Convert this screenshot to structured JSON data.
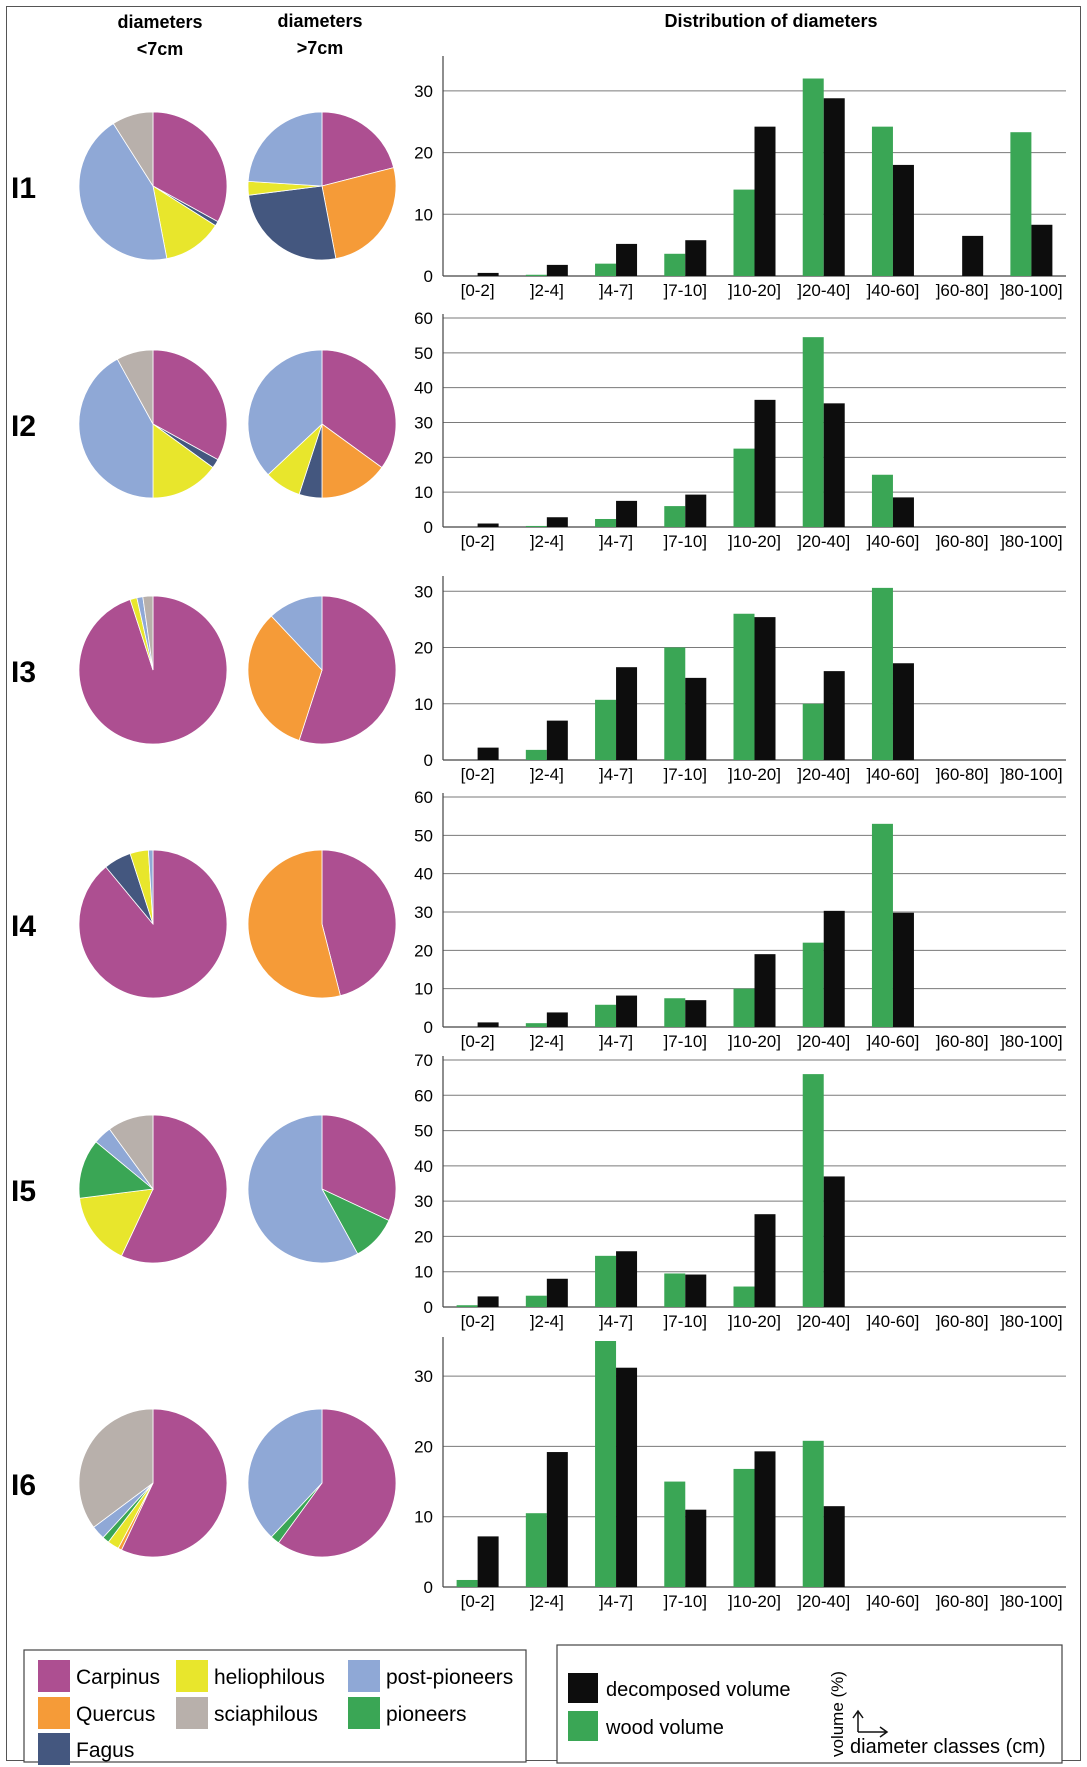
{
  "header": {
    "col1_line1": "diameters",
    "col1_line2": "<7cm",
    "col2_line1": "diameters",
    "col2_line2": ">7cm",
    "col3": "Distribution of diameters"
  },
  "colors": {
    "Carpinus": "#ad4f91",
    "Quercus": "#f59b38",
    "Fagus": "#44577f",
    "heliophilous": "#e8e62c",
    "sciaphilous": "#b8b0ab",
    "post-pioneers": "#8fa8d6",
    "pioneers": "#3aa655",
    "decomposed": "#0d0d0d",
    "wood": "#3aa655"
  },
  "legend": {
    "species": [
      {
        "key": "Carpinus",
        "label": "Carpinus"
      },
      {
        "key": "Quercus",
        "label": "Quercus"
      },
      {
        "key": "Fagus",
        "label": "Fagus"
      },
      {
        "key": "heliophilous",
        "label": "heliophilous"
      },
      {
        "key": "sciaphilous",
        "label": "sciaphilous"
      },
      {
        "key": "post-pioneers",
        "label": "post-pioneers"
      },
      {
        "key": "pioneers",
        "label": "pioneers"
      }
    ],
    "volume": [
      {
        "key": "decomposed",
        "label": "decomposed volume"
      },
      {
        "key": "wood",
        "label": "wood volume"
      }
    ],
    "axis_y": "volume (%)",
    "axis_x": "diameter classes (cm)"
  },
  "chart_data": {
    "type": "bar",
    "categories": [
      "[0-2]",
      "]2-4]",
      "]4-7]",
      "]7-10]",
      "]10-20]",
      "]20-40]",
      "]40-60]",
      "]60-80]",
      "]80-100]"
    ],
    "plots": [
      {
        "row": "I1",
        "yticks": [
          0,
          10,
          20,
          30
        ],
        "ymax": 35,
        "pie_small": [
          [
            "Carpinus",
            33
          ],
          [
            "Fagus",
            1
          ],
          [
            "heliophilous",
            13
          ],
          [
            "post-pioneers",
            44
          ],
          [
            "sciaphilous",
            9
          ]
        ],
        "pie_large": [
          [
            "Carpinus",
            21
          ],
          [
            "Quercus",
            26
          ],
          [
            "Fagus",
            26
          ],
          [
            "heliophilous",
            3
          ],
          [
            "post-pioneers",
            24
          ]
        ],
        "series": [
          {
            "name": "wood volume",
            "values": [
              0,
              0.2,
              2,
              3.6,
              14,
              32,
              24.2,
              0,
              23.3
            ]
          },
          {
            "name": "decomposed volume",
            "values": [
              0.5,
              1.8,
              5.2,
              5.8,
              24.2,
              28.8,
              18,
              6.5,
              8.3
            ]
          }
        ]
      },
      {
        "row": "I2",
        "yticks": [
          0,
          10,
          20,
          30,
          40,
          50,
          60
        ],
        "ymax": 60,
        "pie_small": [
          [
            "Carpinus",
            33
          ],
          [
            "Fagus",
            2
          ],
          [
            "heliophilous",
            15
          ],
          [
            "post-pioneers",
            42
          ],
          [
            "sciaphilous",
            8
          ]
        ],
        "pie_large": [
          [
            "Carpinus",
            35
          ],
          [
            "Quercus",
            15
          ],
          [
            "Fagus",
            5
          ],
          [
            "heliophilous",
            8
          ],
          [
            "post-pioneers",
            37
          ]
        ],
        "series": [
          {
            "name": "wood volume",
            "values": [
              0,
              0.3,
              2.3,
              6,
              22.5,
              54.5,
              15,
              0,
              0
            ]
          },
          {
            "name": "decomposed volume",
            "values": [
              1,
              2.8,
              7.5,
              9.3,
              36.5,
              35.5,
              8.5,
              0,
              0
            ]
          }
        ]
      },
      {
        "row": "I3",
        "yticks": [
          0,
          10,
          20,
          30
        ],
        "ymax": 32,
        "pie_small": [
          [
            "Carpinus",
            95
          ],
          [
            "heliophilous",
            1.5
          ],
          [
            "post-pioneers",
            1.3
          ],
          [
            "sciaphilous",
            2.2
          ]
        ],
        "pie_large": [
          [
            "Carpinus",
            55
          ],
          [
            "Quercus",
            33
          ],
          [
            "post-pioneers",
            12
          ]
        ],
        "series": [
          {
            "name": "wood volume",
            "values": [
              0,
              1.8,
              10.7,
              20,
              26,
              10,
              30.6,
              0,
              0
            ]
          },
          {
            "name": "decomposed volume",
            "values": [
              2.2,
              7,
              16.5,
              14.6,
              25.4,
              15.8,
              17.2,
              0,
              0
            ]
          }
        ]
      },
      {
        "row": "I4",
        "yticks": [
          0,
          10,
          20,
          30,
          40,
          50,
          60
        ],
        "ymax": 60,
        "pie_small": [
          [
            "Carpinus",
            89
          ],
          [
            "Fagus",
            6
          ],
          [
            "heliophilous",
            4
          ],
          [
            "post-pioneers",
            1
          ]
        ],
        "pie_large": [
          [
            "Carpinus",
            46
          ],
          [
            "Quercus",
            54
          ]
        ],
        "series": [
          {
            "name": "wood volume",
            "values": [
              0,
              1,
              5.8,
              7.5,
              10,
              22,
              53,
              0,
              0
            ]
          },
          {
            "name": "decomposed volume",
            "values": [
              1.2,
              3.8,
              8.2,
              7,
              19,
              30.3,
              29.8,
              0,
              0
            ]
          }
        ]
      },
      {
        "row": "I5",
        "yticks": [
          0,
          10,
          20,
          30,
          40,
          50,
          60,
          70
        ],
        "ymax": 70,
        "pie_small": [
          [
            "Carpinus",
            57
          ],
          [
            "heliophilous",
            16
          ],
          [
            "pioneers",
            13
          ],
          [
            "post-pioneers",
            4
          ],
          [
            "sciaphilous",
            10
          ]
        ],
        "pie_large": [
          [
            "Carpinus",
            32
          ],
          [
            "pioneers",
            10
          ],
          [
            "post-pioneers",
            58
          ]
        ],
        "series": [
          {
            "name": "wood volume",
            "values": [
              0.5,
              3.2,
              14.5,
              9.5,
              5.8,
              66,
              0,
              0,
              0
            ]
          },
          {
            "name": "decomposed volume",
            "values": [
              3,
              8,
              15.8,
              9.2,
              26.3,
              37,
              0,
              0,
              0
            ]
          }
        ]
      },
      {
        "row": "I6",
        "yticks": [
          0,
          10,
          20,
          30
        ],
        "ymax": 35,
        "pie_small": [
          [
            "Carpinus",
            57
          ],
          [
            "Quercus",
            0.8
          ],
          [
            "heliophilous",
            2.5
          ],
          [
            "pioneers",
            1.5
          ],
          [
            "post-pioneers",
            3
          ],
          [
            "sciaphilous",
            35.2
          ]
        ],
        "pie_large": [
          [
            "Carpinus",
            60
          ],
          [
            "pioneers",
            2
          ],
          [
            "post-pioneers",
            38
          ]
        ],
        "series": [
          {
            "name": "wood volume",
            "values": [
              1,
              10.5,
              35,
              15,
              16.8,
              20.8,
              0,
              0,
              0
            ]
          },
          {
            "name": "decomposed volume",
            "values": [
              7.2,
              19.2,
              31.2,
              11,
              19.3,
              11.5,
              0,
              0,
              0
            ]
          }
        ]
      }
    ]
  }
}
